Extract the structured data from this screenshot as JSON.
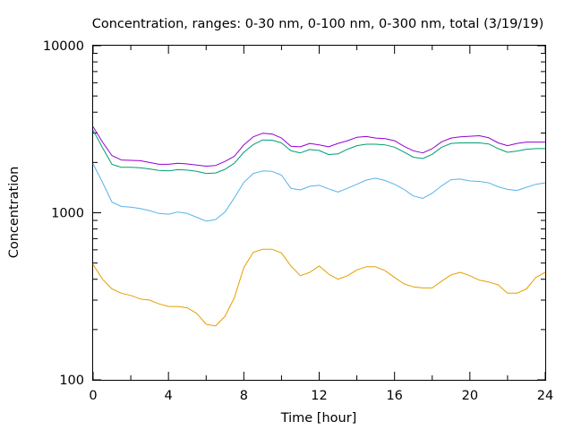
{
  "chart_data": {
    "type": "line",
    "title": "Concentration, ranges: 0-30 nm, 0-100 nm, 0-300 nm, total (3/19/19)",
    "xlabel": "Time [hour]",
    "ylabel": "Concentration",
    "xlim": [
      0,
      24
    ],
    "ylim": [
      100,
      10000
    ],
    "yscale": "log",
    "grid": false,
    "x_ticks": [
      0,
      4,
      8,
      12,
      16,
      20,
      24
    ],
    "y_ticks": [
      100,
      1000,
      10000
    ],
    "x_tick_labels": [
      "0",
      "4",
      "8",
      "12",
      "16",
      "20",
      "24"
    ],
    "y_tick_labels": [
      "100",
      "1000",
      "10000"
    ],
    "x": [
      0,
      0.5,
      1,
      1.5,
      2,
      2.5,
      3,
      3.5,
      4,
      4.5,
      5,
      5.5,
      6,
      6.5,
      7,
      7.5,
      8,
      8.5,
      9,
      9.5,
      10,
      10.5,
      11,
      11.5,
      12,
      12.5,
      13,
      13.5,
      14,
      14.5,
      15,
      15.5,
      16,
      16.5,
      17,
      17.5,
      18,
      18.5,
      19,
      19.5,
      20,
      20.5,
      21,
      21.5,
      22,
      22.5,
      23,
      23.5,
      24
    ],
    "series": [
      {
        "color": "#9400d3",
        "values": [
          3270,
          2650,
          2200,
          2070,
          2060,
          2050,
          2000,
          1950,
          1950,
          1980,
          1960,
          1930,
          1900,
          1920,
          2030,
          2180,
          2550,
          2850,
          2990,
          2960,
          2800,
          2500,
          2480,
          2600,
          2550,
          2480,
          2600,
          2700,
          2830,
          2860,
          2800,
          2780,
          2700,
          2500,
          2350,
          2280,
          2420,
          2660,
          2800,
          2850,
          2870,
          2890,
          2810,
          2620,
          2520,
          2600,
          2650,
          2650,
          2650
        ]
      },
      {
        "color": "#009e73",
        "values": [
          3120,
          2450,
          1950,
          1870,
          1870,
          1860,
          1830,
          1790,
          1780,
          1810,
          1800,
          1770,
          1720,
          1730,
          1820,
          1980,
          2300,
          2560,
          2730,
          2720,
          2620,
          2350,
          2280,
          2390,
          2360,
          2230,
          2250,
          2400,
          2520,
          2570,
          2570,
          2550,
          2470,
          2310,
          2150,
          2110,
          2240,
          2470,
          2600,
          2620,
          2620,
          2620,
          2580,
          2420,
          2300,
          2340,
          2400,
          2420,
          2420
        ]
      },
      {
        "color": "#56b4e9",
        "values": [
          1960,
          1520,
          1160,
          1090,
          1080,
          1060,
          1030,
          990,
          980,
          1010,
          990,
          940,
          890,
          910,
          1010,
          1230,
          1520,
          1720,
          1780,
          1770,
          1680,
          1400,
          1370,
          1440,
          1460,
          1390,
          1330,
          1400,
          1480,
          1570,
          1610,
          1560,
          1480,
          1380,
          1260,
          1220,
          1310,
          1450,
          1580,
          1590,
          1550,
          1540,
          1510,
          1430,
          1380,
          1360,
          1420,
          1480,
          1510
        ]
      },
      {
        "color": "#e69f00",
        "values": [
          490,
          400,
          350,
          330,
          320,
          305,
          300,
          285,
          275,
          275,
          270,
          250,
          215,
          210,
          240,
          310,
          470,
          580,
          605,
          605,
          575,
          480,
          420,
          440,
          480,
          430,
          400,
          420,
          455,
          475,
          475,
          450,
          410,
          375,
          360,
          355,
          355,
          390,
          425,
          440,
          420,
          395,
          385,
          370,
          330,
          330,
          350,
          410,
          440
        ]
      }
    ]
  }
}
